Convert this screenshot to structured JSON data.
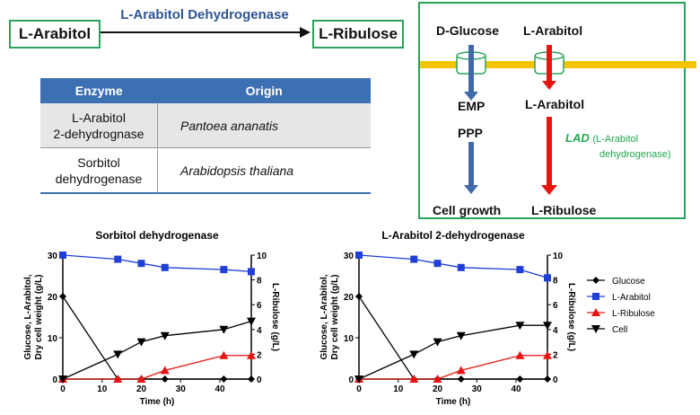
{
  "reaction": {
    "substrate": "L-Arabitol",
    "enzyme": "L-Arabitol Dehydrogenase",
    "product": "L-Ribulose"
  },
  "table": {
    "headers": [
      "Enzyme",
      "Origin"
    ],
    "rows": [
      {
        "enzyme": [
          "L-Arabitol",
          "2-dehydrognase"
        ],
        "origin": "Pantoea ananatis"
      },
      {
        "enzyme": [
          "Sorbitol",
          "dehydrogenase"
        ],
        "origin": "Arabidopsis thaliana"
      }
    ]
  },
  "pathway": {
    "glucose": "D-Glucose",
    "arabitol_out": "L-Arabitol",
    "emp": "EMP",
    "ppp": "PPP",
    "arabitol_in": "L-Arabitol",
    "lad": "LAD",
    "lad_note_1": "(L-Arabitol",
    "lad_note_2": "dehydrogenase)",
    "cell_growth": "Cell growth",
    "ribulose": "L-Ribulose",
    "colors": {
      "glucose_arrow": "#3f6aa8",
      "arabitol_arrow": "#e8140f",
      "membrane": "#f5c400",
      "lad_text": "#1ea94e",
      "frame": "#2aa35a"
    }
  },
  "chart_data": [
    {
      "type": "line",
      "title": "Sorbitol dehydrogenase",
      "xlabel": "Time (h)",
      "ylabel_left": [
        "Glucose, L-Arabitol,",
        "Dry cell weight  (g/L)"
      ],
      "ylabel_right": "L-Ribulose (g/L)",
      "xlim": [
        0,
        48
      ],
      "xticks": [
        "0",
        "10",
        "20",
        "30",
        "40"
      ],
      "ylim_left": [
        0,
        30
      ],
      "yticks_left": [
        "0",
        "10",
        "20",
        "30"
      ],
      "ylim_right": [
        0,
        10
      ],
      "yticks_right": [
        "0",
        "2",
        "4",
        "6",
        "8",
        "10"
      ],
      "series": [
        {
          "name": "Glucose",
          "axis": "left",
          "color": "#000000",
          "marker": "diamond",
          "x": [
            0,
            14,
            20,
            26,
            41,
            48
          ],
          "y": [
            20,
            0,
            0,
            0,
            0,
            0
          ]
        },
        {
          "name": "L-Arabitol",
          "axis": "left",
          "color": "#1f3fd6",
          "marker": "square",
          "x": [
            0,
            14,
            20,
            26,
            41,
            48
          ],
          "y": [
            30,
            29,
            28,
            27,
            26.5,
            26
          ]
        },
        {
          "name": "L-Ribulose",
          "axis": "right",
          "color": "#e8140f",
          "marker": "triangle-up",
          "x": [
            0,
            14,
            20,
            26,
            41,
            48
          ],
          "y": [
            0,
            0,
            0,
            0.7,
            1.9,
            1.9
          ]
        },
        {
          "name": "Cell",
          "axis": "left",
          "color": "#000000",
          "marker": "triangle-down",
          "x": [
            0,
            14,
            20,
            26,
            41,
            48
          ],
          "y": [
            0,
            6,
            9,
            10.5,
            12,
            14
          ]
        }
      ]
    },
    {
      "type": "line",
      "title": "L-Arabitol 2-dehydrogenase",
      "xlabel": "Time (h)",
      "ylabel_left": [
        "Glucose, L-Arabitol,",
        "Dry cell weight  (g/L)"
      ],
      "ylabel_right": "L-Ribulose (g/L)",
      "xlim": [
        0,
        48
      ],
      "xticks": [
        "0",
        "10",
        "20",
        "30",
        "40"
      ],
      "ylim_left": [
        0,
        30
      ],
      "yticks_left": [
        "0",
        "10",
        "20",
        "30"
      ],
      "ylim_right": [
        0,
        10
      ],
      "yticks_right": [
        "0",
        "2",
        "4",
        "6",
        "8",
        "10"
      ],
      "series": [
        {
          "name": "Glucose",
          "axis": "left",
          "color": "#000000",
          "marker": "diamond",
          "x": [
            0,
            14,
            20,
            26,
            41,
            48
          ],
          "y": [
            20,
            0,
            0,
            0,
            0,
            0
          ]
        },
        {
          "name": "L-Arabitol",
          "axis": "left",
          "color": "#1f3fd6",
          "marker": "square",
          "x": [
            0,
            14,
            20,
            26,
            41,
            48
          ],
          "y": [
            30,
            29,
            28,
            27,
            26.5,
            24.5
          ]
        },
        {
          "name": "L-Ribulose",
          "axis": "right",
          "color": "#e8140f",
          "marker": "triangle-up",
          "x": [
            0,
            14,
            20,
            26,
            41,
            48
          ],
          "y": [
            0,
            0,
            0,
            0.7,
            1.9,
            1.9
          ]
        },
        {
          "name": "Cell",
          "axis": "left",
          "color": "#000000",
          "marker": "triangle-down",
          "x": [
            0,
            14,
            20,
            26,
            41,
            48
          ],
          "y": [
            0,
            6,
            9,
            10.5,
            13,
            13
          ]
        }
      ]
    }
  ],
  "legend": [
    {
      "label": "Glucose",
      "color": "#000000",
      "marker": "diamond"
    },
    {
      "label": "L-Arabitol",
      "color": "#1f3fd6",
      "marker": "square"
    },
    {
      "label": "L-Ribulose",
      "color": "#e8140f",
      "marker": "triangle-up"
    },
    {
      "label": "Cell",
      "color": "#000000",
      "marker": "triangle-down"
    }
  ]
}
